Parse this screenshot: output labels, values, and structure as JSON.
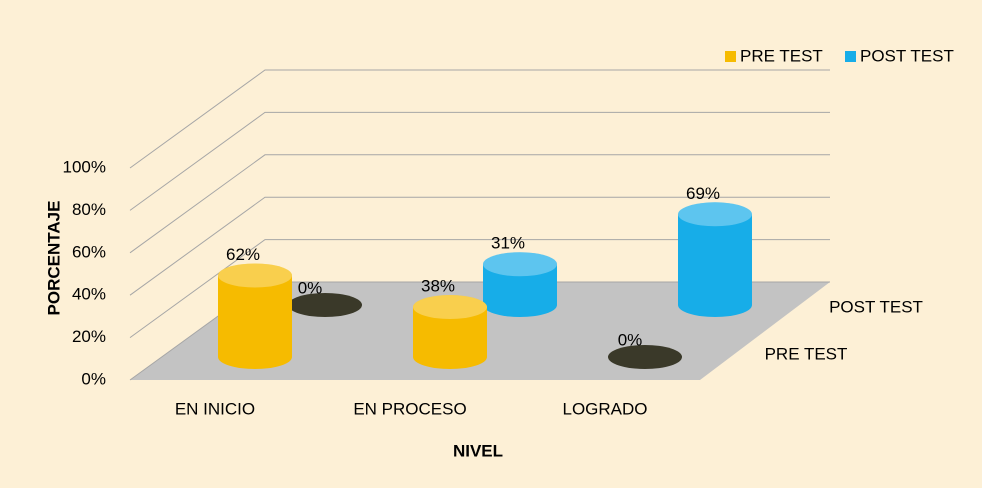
{
  "chart_data": {
    "type": "bar3d",
    "categories": [
      "EN INICIO",
      "EN PROCESO",
      "LOGRADO"
    ],
    "series": [
      {
        "name": "PRE TEST",
        "color": "#f6bb00",
        "values": [
          62,
          38,
          0
        ],
        "value_labels": [
          "62%",
          "38%",
          "0%"
        ]
      },
      {
        "name": "POST TEST",
        "color": "#17ade8",
        "values": [
          0,
          31,
          69
        ],
        "value_labels": [
          "0%",
          "31%",
          "69%"
        ]
      }
    ],
    "ylim": [
      0,
      100
    ],
    "yticks": [
      {
        "value": 0,
        "label": "0%"
      },
      {
        "value": 20,
        "label": "20%"
      },
      {
        "value": 40,
        "label": "40%"
      },
      {
        "value": 60,
        "label": "60%"
      },
      {
        "value": 80,
        "label": "80%"
      },
      {
        "value": 100,
        "label": "100%"
      }
    ],
    "ylabel": "PORCENTAJE",
    "xlabel": "NIVEL",
    "grid": true,
    "legend": "top-right"
  }
}
